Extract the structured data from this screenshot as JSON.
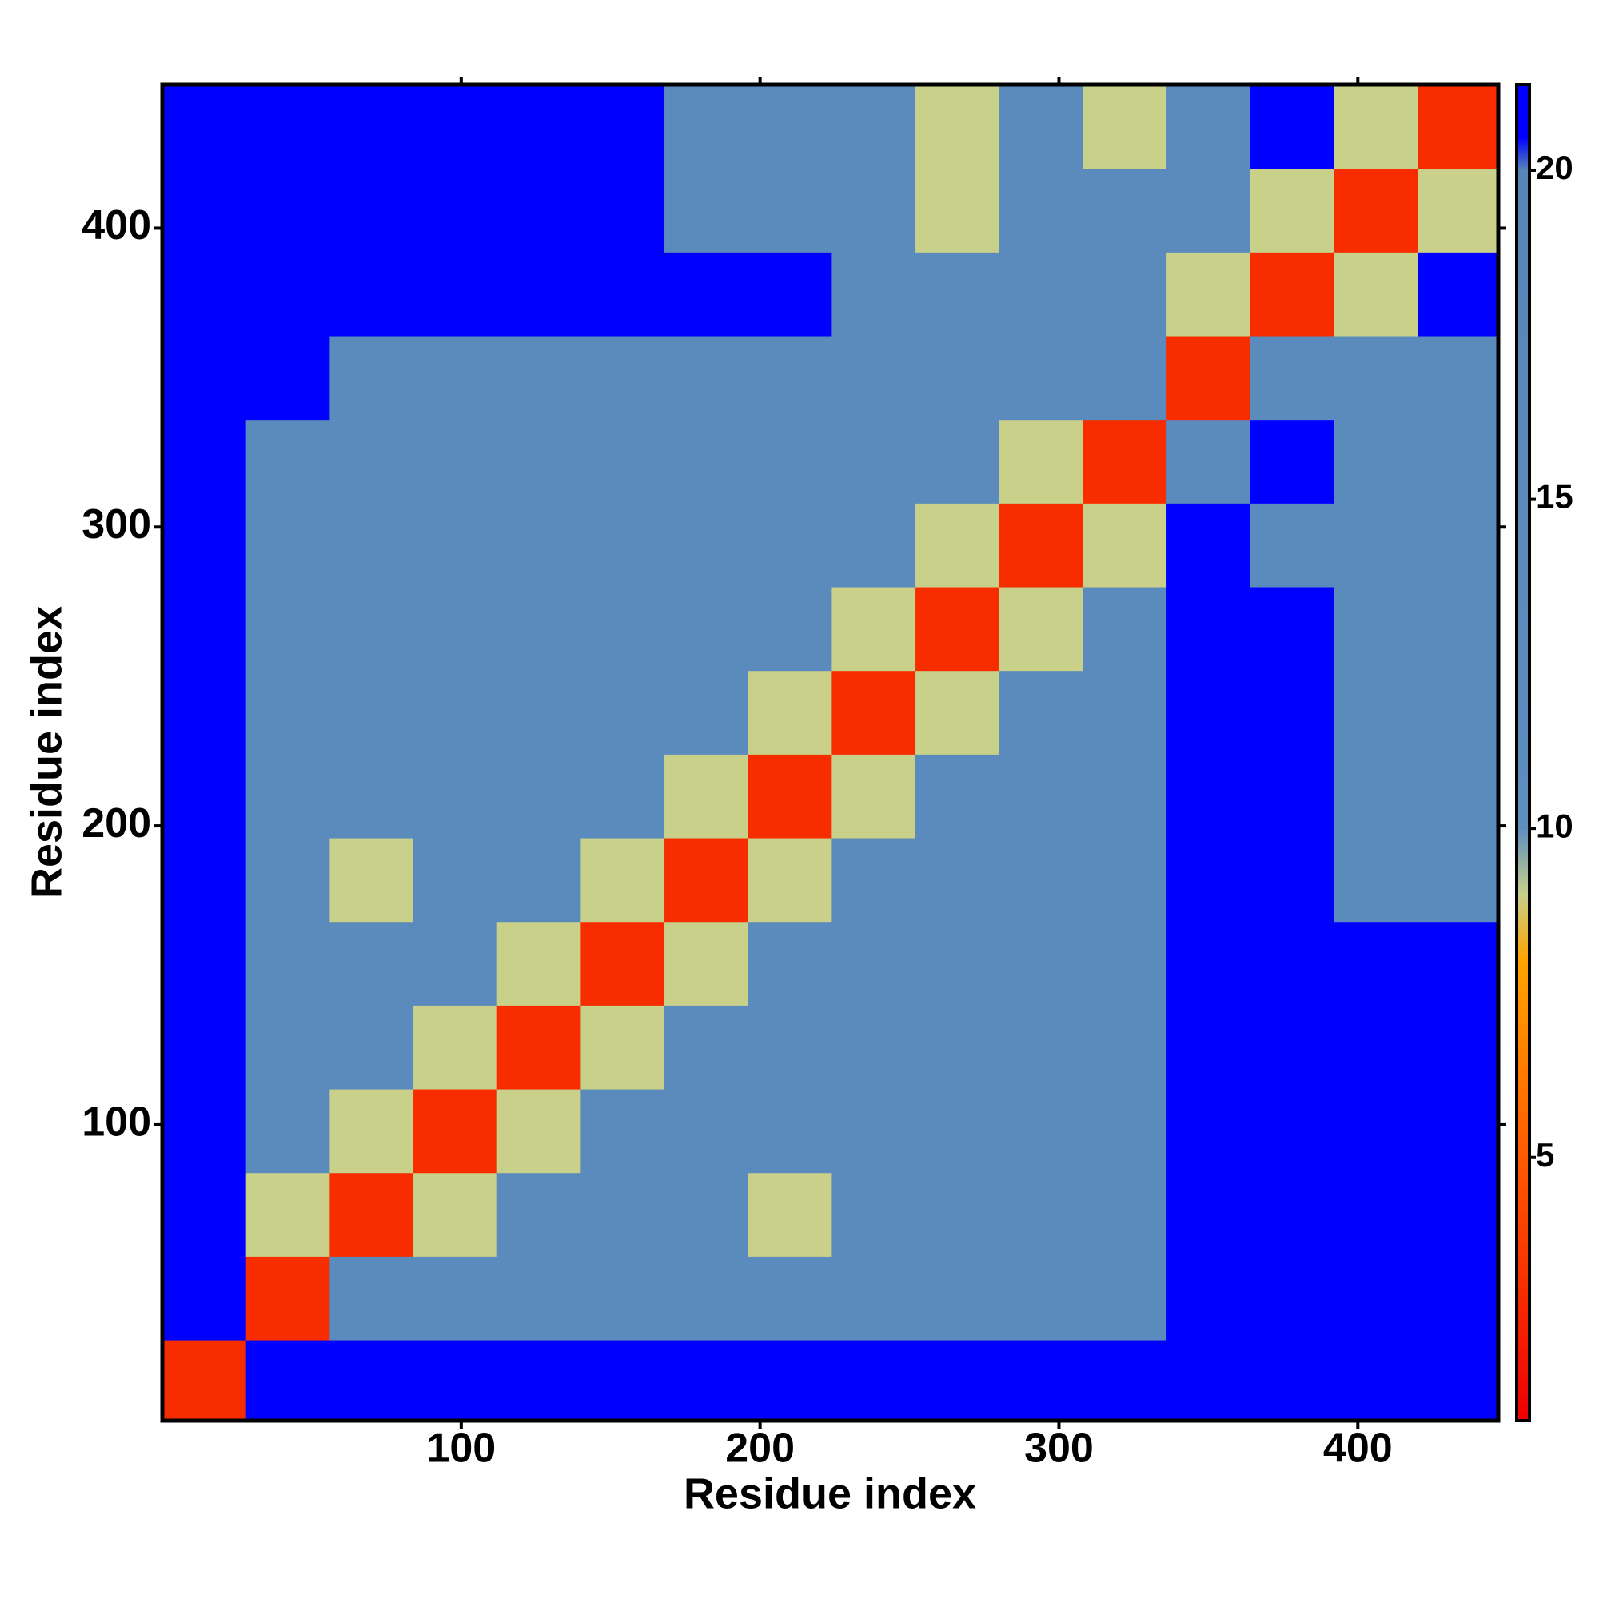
{
  "chart_data": {
    "type": "heatmap",
    "xlabel": "Residue index",
    "ylabel": "Residue index",
    "xlim": [
      0,
      447
    ],
    "ylim": [
      1,
      448
    ],
    "xticks": [
      100,
      200,
      300,
      400
    ],
    "yticks": [
      100,
      200,
      300,
      400
    ],
    "x": [
      0,
      28,
      56,
      84,
      112,
      140,
      168,
      196,
      224,
      252,
      280,
      308,
      336,
      364,
      392,
      420,
      448
    ],
    "y": [
      0,
      28,
      56,
      84,
      112,
      140,
      168,
      196,
      224,
      252,
      280,
      308,
      336,
      364,
      392,
      420,
      448
    ],
    "z": [
      [
        3,
        21,
        21,
        21,
        21,
        21,
        21,
        21,
        21,
        21,
        21,
        21,
        21,
        21,
        21,
        21
      ],
      [
        21,
        3,
        15,
        15,
        15,
        15,
        15,
        15,
        15,
        15,
        15,
        15,
        21,
        21,
        21,
        21
      ],
      [
        21,
        9,
        3,
        9,
        15,
        15,
        15,
        9,
        15,
        15,
        15,
        15,
        21,
        21,
        21,
        21
      ],
      [
        21,
        15,
        9,
        3,
        9,
        15,
        15,
        15,
        15,
        15,
        15,
        15,
        21,
        21,
        21,
        21
      ],
      [
        21,
        15,
        15,
        9,
        3,
        9,
        15,
        15,
        15,
        15,
        15,
        15,
        21,
        21,
        21,
        21
      ],
      [
        21,
        15,
        15,
        15,
        9,
        3,
        9,
        15,
        15,
        15,
        15,
        15,
        21,
        21,
        21,
        21
      ],
      [
        21,
        15,
        9,
        15,
        15,
        9,
        3,
        9,
        15,
        15,
        15,
        15,
        21,
        21,
        15,
        15
      ],
      [
        21,
        15,
        15,
        15,
        15,
        15,
        9,
        3,
        9,
        15,
        15,
        15,
        21,
        21,
        15,
        15
      ],
      [
        21,
        15,
        15,
        15,
        15,
        15,
        15,
        9,
        3,
        9,
        15,
        15,
        21,
        21,
        15,
        15
      ],
      [
        21,
        15,
        15,
        15,
        15,
        15,
        15,
        15,
        9,
        3,
        9,
        15,
        21,
        21,
        15,
        15
      ],
      [
        21,
        15,
        15,
        15,
        15,
        15,
        15,
        15,
        15,
        9,
        3,
        9,
        21,
        15,
        15,
        15
      ],
      [
        21,
        15,
        15,
        15,
        15,
        15,
        15,
        15,
        15,
        15,
        9,
        3,
        15,
        21,
        15,
        15
      ],
      [
        21,
        21,
        15,
        15,
        15,
        15,
        15,
        15,
        15,
        15,
        15,
        15,
        3,
        15,
        15,
        15
      ],
      [
        21,
        21,
        21,
        21,
        21,
        21,
        21,
        21,
        15,
        15,
        15,
        15,
        9,
        3,
        9,
        21
      ],
      [
        21,
        21,
        21,
        21,
        21,
        21,
        15,
        15,
        15,
        9,
        15,
        15,
        15,
        9,
        3,
        9
      ],
      [
        21,
        21,
        21,
        21,
        21,
        21,
        15,
        15,
        15,
        9,
        15,
        9,
        15,
        21,
        9,
        3
      ]
    ],
    "colorscale": [
      [
        1,
        "#ee0000"
      ],
      [
        5,
        "#ff5a00"
      ],
      [
        8,
        "#ffa500"
      ],
      [
        9,
        "#c8d08a"
      ],
      [
        10,
        "#5d8ec0"
      ],
      [
        20,
        "#5885b8"
      ],
      [
        20.5,
        "#0000ff"
      ],
      [
        21.3,
        "#0000ff"
      ]
    ],
    "clim": [
      1,
      21.3
    ],
    "cticks": [
      5,
      10,
      15,
      20
    ]
  }
}
